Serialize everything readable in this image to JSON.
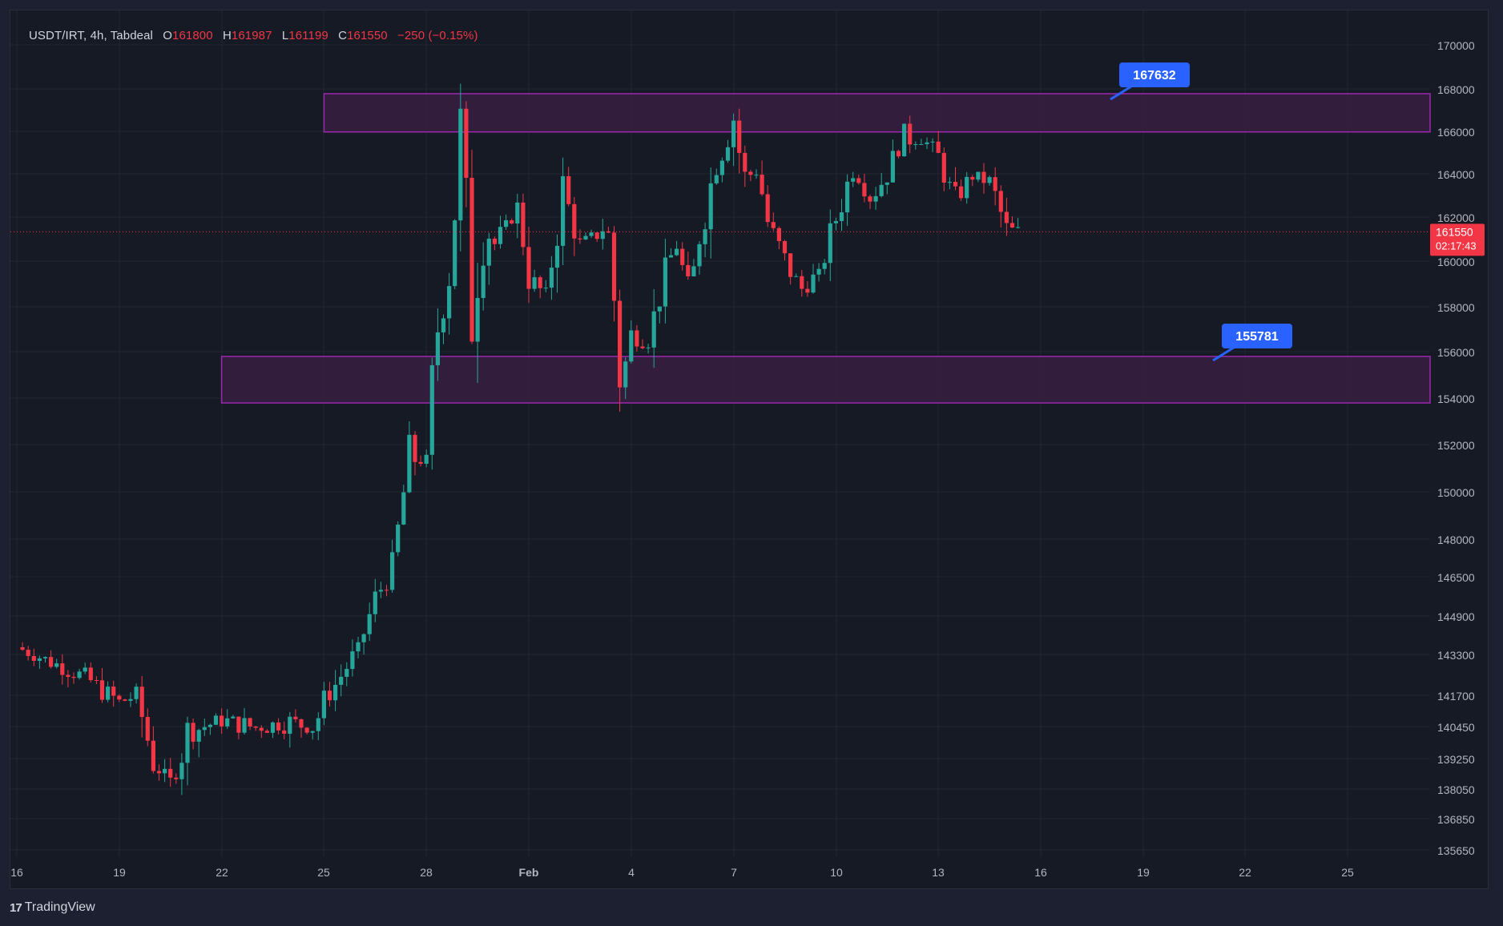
{
  "legend": {
    "symbol": "USDT/IRT, 4h, Tabdeal",
    "o_label": "O",
    "o": "161800",
    "h_label": "H",
    "h": "161987",
    "l_label": "L",
    "l": "161199",
    "c_label": "C",
    "c": "161550",
    "change": "−250 (−0.15%)"
  },
  "footer": {
    "brand": "TradingView",
    "logo_icon": "tradingview-logo-icon"
  },
  "colors": {
    "up": "#26a69a",
    "down": "#f23645",
    "zone_border": "#9c27b0",
    "zone_fill": "#351d3d",
    "label": "#2962ff",
    "price_tag": "#f23645"
  },
  "chart_data": {
    "type": "candlestick",
    "price_axis_ticks": [
      "170000",
      "168000",
      "166000",
      "164000",
      "162000",
      "160000",
      "158000",
      "156000",
      "154000",
      "152000",
      "150000",
      "148000",
      "146500",
      "144900",
      "143300",
      "141700",
      "140450",
      "139250",
      "138050",
      "136850",
      "135650"
    ],
    "time_axis_ticks": [
      "16",
      "19",
      "22",
      "25",
      "28",
      "Feb",
      "4",
      "7",
      "10",
      "13",
      "16",
      "19",
      "22",
      "25"
    ],
    "current_price": "161550",
    "countdown": "02:17:43",
    "zones": [
      {
        "name": "resistance",
        "from": 166200,
        "to": 168000,
        "start": "Jan 25",
        "label": "167632"
      },
      {
        "name": "support",
        "from": 154000,
        "to": 156000,
        "start": "Jan 22",
        "label": "155781"
      }
    ],
    "close_path": [
      [
        "Jan 16",
        143800
      ],
      [
        "Jan 17",
        143200
      ],
      [
        "Jan 18",
        142600
      ],
      [
        "Jan 19",
        141600
      ],
      [
        "Jan 19.5",
        141900
      ],
      [
        "Jan 20",
        139300
      ],
      [
        "Jan 20.5",
        138400
      ],
      [
        "Jan 21",
        140400
      ],
      [
        "Jan 22",
        140900
      ],
      [
        "Jan 23",
        140600
      ],
      [
        "Jan 24",
        140800
      ],
      [
        "Jan 24.7",
        140600
      ],
      [
        "Jan 25",
        141600
      ],
      [
        "Jan 26",
        143700
      ],
      [
        "Jan 26.5",
        145800
      ],
      [
        "Jan 27",
        147000
      ],
      [
        "Jan 27.5",
        151700
      ],
      [
        "Jan 28",
        151500
      ],
      [
        "Jan 28.3",
        157000
      ],
      [
        "Jan 28.7",
        160000
      ],
      [
        "Jan 29",
        166200
      ],
      [
        "Jan 29.3",
        158000
      ],
      [
        "Jan 29.7",
        162000
      ],
      [
        "Jan 30",
        161000
      ],
      [
        "Jan 30.7",
        162700
      ],
      [
        "Jan 31",
        159600
      ],
      [
        "Jan 31.5",
        158600
      ],
      [
        "Feb 1",
        163400
      ],
      [
        "Feb 1.5",
        161000
      ],
      [
        "Feb 2",
        161400
      ],
      [
        "Feb 2.3",
        162000
      ],
      [
        "Feb 2.5",
        158600
      ],
      [
        "Feb 2.7",
        154700
      ],
      [
        "Feb 3",
        156900
      ],
      [
        "Feb 3.5",
        156800
      ],
      [
        "Feb 4",
        159500
      ],
      [
        "Feb 4.3",
        161200
      ],
      [
        "Feb 4.7",
        158500
      ],
      [
        "Feb 5",
        161500
      ],
      [
        "Feb 5.5",
        164800
      ],
      [
        "Feb 6",
        166900
      ],
      [
        "Feb 6.3",
        164000
      ],
      [
        "Feb 6.7",
        164400
      ],
      [
        "Feb 7",
        162000
      ],
      [
        "Feb 7.5",
        160200
      ],
      [
        "Feb 8",
        159000
      ],
      [
        "Feb 8.5",
        159600
      ],
      [
        "Feb 9",
        162100
      ],
      [
        "Feb 9.5",
        164500
      ],
      [
        "Feb 10",
        163100
      ],
      [
        "Feb 10.5",
        164200
      ],
      [
        "Feb 11",
        165900
      ],
      [
        "Feb 11.5",
        166000
      ],
      [
        "Feb 12",
        165000
      ],
      [
        "Feb 12.5",
        163000
      ],
      [
        "Feb 13",
        164100
      ],
      [
        "Feb 13.5",
        163900
      ],
      [
        "Feb 14",
        161600
      ],
      [
        "Feb 14.3",
        161550
      ]
    ]
  }
}
